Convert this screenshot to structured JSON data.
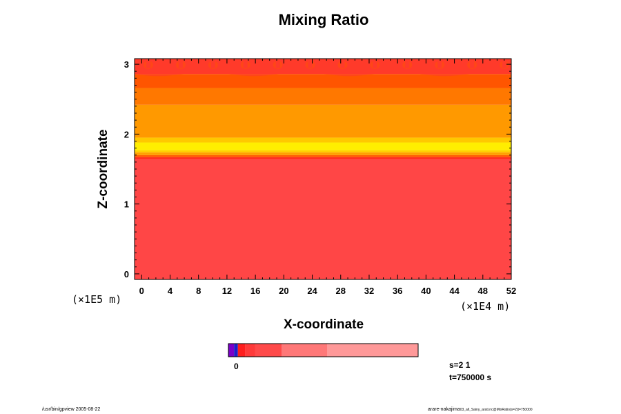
{
  "chart_data": {
    "type": "heatmap",
    "title": "Mixing Ratio",
    "xlabel": "X-coordinate",
    "ylabel": "Z-coordinate",
    "x_scale_label": "(×1E4 m)",
    "y_scale_label": "(×1E5 m)",
    "xlim": [
      -1,
      52
    ],
    "ylim": [
      -0.08,
      3.08
    ],
    "x_ticks": [
      0,
      4,
      8,
      12,
      16,
      20,
      24,
      28,
      32,
      36,
      40,
      44,
      48,
      52
    ],
    "y_ticks": [
      0,
      1,
      2,
      3
    ],
    "bands": [
      {
        "z0": -0.08,
        "z1": 1.64,
        "color": "#ff4646"
      },
      {
        "z0": 1.64,
        "z1": 1.67,
        "color": "#ff2a1e"
      },
      {
        "z0": 1.67,
        "z1": 1.7,
        "color": "#ff5a00"
      },
      {
        "z0": 1.7,
        "z1": 1.74,
        "color": "#ffa000"
      },
      {
        "z0": 1.74,
        "z1": 1.77,
        "color": "#ffd000"
      },
      {
        "z0": 1.77,
        "z1": 1.88,
        "color": "#ffee00"
      },
      {
        "z0": 1.88,
        "z1": 1.95,
        "color": "#ffc800"
      },
      {
        "z0": 1.95,
        "z1": 2.42,
        "color": "#ff9900"
      },
      {
        "z0": 2.42,
        "z1": 2.66,
        "color": "#ff7800"
      },
      {
        "z0": 2.66,
        "z1": 2.86,
        "color": "#ff5500"
      },
      {
        "z0": 2.86,
        "z1": 3.08,
        "color": "#ff3a2a"
      }
    ],
    "colorbar": {
      "segments": [
        {
          "from": 0,
          "to": 0.03,
          "color": "#7a00c8"
        },
        {
          "from": 0.03,
          "to": 0.05,
          "color": "#1e1ec8"
        },
        {
          "from": 0.05,
          "to": 0.09,
          "color": "#ff1e1e"
        },
        {
          "from": 0.09,
          "to": 0.14,
          "color": "#ff3a3a"
        },
        {
          "from": 0.14,
          "to": 0.28,
          "color": "#ff4a4a"
        },
        {
          "from": 0.28,
          "to": 0.52,
          "color": "#ff7878"
        },
        {
          "from": 0.52,
          "to": 1.0,
          "color": "#ff9999"
        }
      ],
      "label": "0"
    }
  },
  "annotations": {
    "s_value": "s=2 1",
    "t_value": "t=750000 s"
  },
  "footer": {
    "left": "/usr/bin/gpview 2005-08-22",
    "right": "arare-nakajima",
    "right_small": "03_all_Sainy_arati.nc@MixRatio(s=2)t=750000"
  }
}
